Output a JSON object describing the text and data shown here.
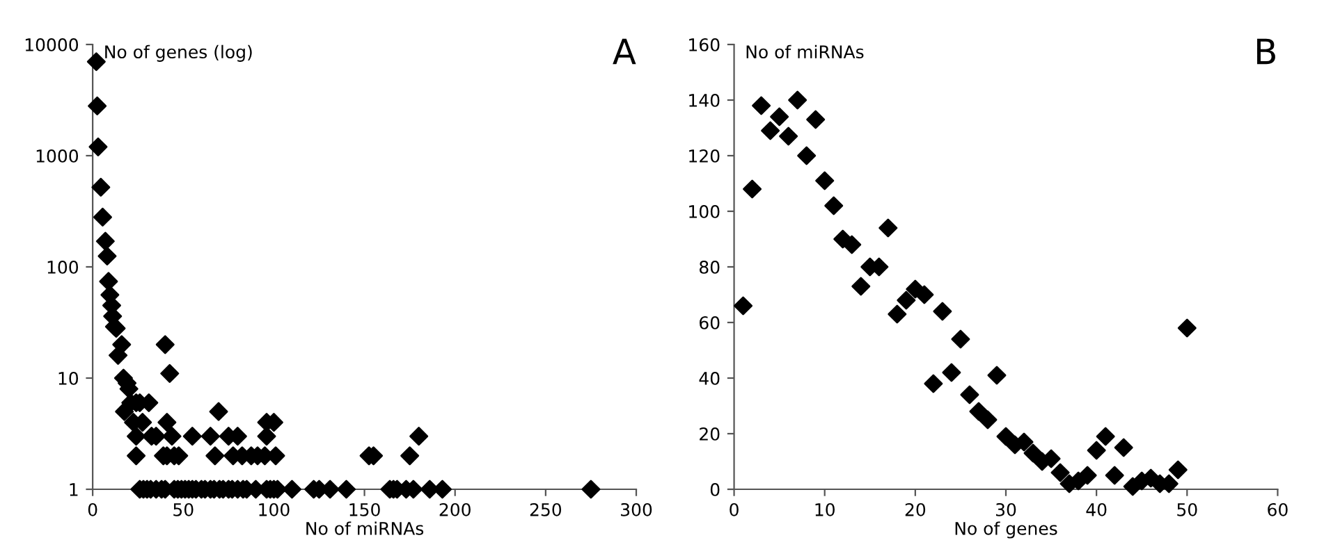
{
  "chart_data": [
    {
      "type": "scatter",
      "title": "A",
      "xlabel": "No of miRNAs",
      "ylabel": "No of genes (log)",
      "log": "y",
      "xlim": [
        0,
        300
      ],
      "xticks": [
        0,
        50,
        100,
        150,
        200,
        250,
        300
      ],
      "ylim": [
        1,
        10000
      ],
      "yticks": [
        1,
        10,
        100,
        1000,
        10000
      ],
      "marker": "diamond",
      "grid": false,
      "legend": false,
      "series": [
        {
          "color": "#000000",
          "x": [
            2,
            2.5,
            3,
            4.5,
            5.5,
            7,
            8,
            8.75,
            9.5,
            10.5,
            11,
            12,
            13,
            16,
            14,
            17,
            19,
            20,
            17.5,
            21,
            24,
            26,
            31,
            22.5,
            27.5,
            24,
            32.5,
            35,
            43.75,
            55,
            65,
            75,
            80,
            96,
            40,
            42.5,
            41,
            69.5,
            96,
            100,
            24,
            39,
            41,
            45,
            47.5,
            67.5,
            77.5,
            82.5,
            87.5,
            91,
            95,
            101,
            152.5,
            155,
            175,
            180,
            26,
            28,
            30,
            32,
            35,
            38,
            40,
            45,
            47,
            49,
            51,
            53,
            55,
            57,
            60,
            62,
            65,
            67,
            70,
            72,
            75,
            77,
            80,
            83,
            85,
            90,
            96,
            98,
            100,
            102,
            110,
            122,
            125,
            131,
            140,
            164,
            166,
            168,
            173,
            177,
            186,
            193,
            275
          ],
          "values": [
            7000,
            2800,
            1200,
            520,
            280,
            170,
            125,
            74,
            56,
            45,
            36,
            29,
            28,
            20,
            16,
            10,
            9,
            8,
            5,
            6,
            6,
            6,
            6,
            4,
            4,
            3,
            3,
            3,
            3,
            3,
            3,
            3,
            3,
            3,
            20,
            11,
            4,
            5,
            4,
            4,
            2,
            2,
            2,
            2,
            2,
            2,
            2,
            2,
            2,
            2,
            2,
            2,
            2,
            2,
            2,
            3,
            1,
            1,
            1,
            1,
            1,
            1,
            1,
            1,
            1,
            1,
            1,
            1,
            1,
            1,
            1,
            1,
            1,
            1,
            1,
            1,
            1,
            1,
            1,
            1,
            1,
            1,
            1,
            1,
            1,
            1,
            1,
            1,
            1,
            1,
            1,
            1,
            1,
            1,
            1,
            1,
            1,
            1,
            1
          ]
        }
      ]
    },
    {
      "type": "scatter",
      "title": "B",
      "xlabel": "No of genes",
      "ylabel": "No of miRNAs",
      "xlim": [
        0,
        60
      ],
      "xticks": [
        0,
        10,
        20,
        30,
        40,
        50,
        60
      ],
      "ylim": [
        0,
        160
      ],
      "yticks": [
        0,
        20,
        40,
        60,
        80,
        100,
        120,
        140,
        160
      ],
      "marker": "diamond",
      "grid": false,
      "legend": false,
      "series": [
        {
          "color": "#000000",
          "x": [
            1,
            2,
            3,
            4,
            5,
            6,
            7,
            8,
            9,
            10,
            11,
            12,
            13,
            14,
            15,
            16,
            17,
            18,
            19,
            20,
            21,
            22,
            23,
            24,
            25,
            26,
            27,
            28,
            29,
            30,
            31,
            32,
            33,
            34,
            35,
            36,
            37,
            38,
            39,
            40,
            41,
            42,
            43,
            44,
            45,
            46,
            47,
            48,
            49,
            50
          ],
          "values": [
            66,
            108,
            138,
            129,
            134,
            127,
            140,
            120,
            133,
            111,
            102,
            90,
            88,
            73,
            80,
            80,
            94,
            63,
            68,
            72,
            70,
            38,
            64,
            42,
            54,
            34,
            28,
            25,
            41,
            19,
            16,
            17,
            13,
            10,
            11,
            6,
            2,
            3,
            5,
            14,
            19,
            5,
            15,
            1,
            3,
            4,
            2,
            2,
            7,
            58
          ]
        }
      ]
    }
  ]
}
